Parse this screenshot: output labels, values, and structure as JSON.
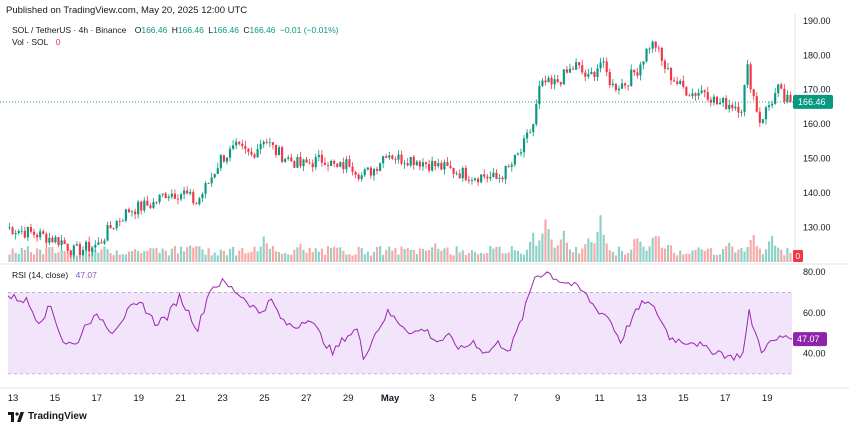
{
  "header": {
    "published": "Published on TradingView.com, May 20, 2025 12:00 UTC"
  },
  "legend": {
    "symbol": "SOL / TetherUS · 4h · Binance",
    "o_label": "O",
    "o_value": "166.46",
    "h_label": "H",
    "h_value": "166.46",
    "l_label": "L",
    "l_value": "166.46",
    "c_label": "C",
    "c_value": "166.46",
    "change": "−0.01 (−0.01%)",
    "vol_label": "Vol · SOL",
    "vol_value": "0"
  },
  "rsi_legend": {
    "label": "RSI (14, close)",
    "value": "47.07"
  },
  "brand": {
    "name": "TradingView"
  },
  "colors": {
    "up": "#089981",
    "down": "#f23645",
    "up_vol": "#8fd1c7",
    "down_vol": "#f7a9a7",
    "rsi": "#9c27b0",
    "rsi_band": "#f1e4fb",
    "price_tag": "#089981",
    "zero_tag": "#f23645"
  },
  "chart_data": [
    {
      "type": "candlestick",
      "title": "SOL / TetherUS · 4h · Binance",
      "ylim": [
        122,
        192
      ],
      "yticks": [
        "190.00",
        "180.00",
        "170.00",
        "160.00",
        "150.00",
        "140.00",
        "130.00"
      ],
      "last_price": 166.46,
      "last_price_label": "166.46",
      "keypoints": [
        [
          0,
          130
        ],
        [
          10,
          128
        ],
        [
          18,
          126
        ],
        [
          22,
          123
        ],
        [
          26,
          124
        ],
        [
          30,
          125
        ],
        [
          34,
          130
        ],
        [
          40,
          135
        ],
        [
          44,
          136
        ],
        [
          48,
          137
        ],
        [
          52,
          140
        ],
        [
          58,
          140
        ],
        [
          62,
          137
        ],
        [
          66,
          143
        ],
        [
          70,
          150
        ],
        [
          75,
          153
        ],
        [
          80,
          151
        ],
        [
          84,
          156
        ],
        [
          88,
          152
        ],
        [
          92,
          150
        ],
        [
          96,
          148
        ],
        [
          100,
          149
        ],
        [
          104,
          150
        ],
        [
          108,
          147
        ],
        [
          112,
          149
        ],
        [
          116,
          145
        ],
        [
          120,
          147
        ],
        [
          124,
          152
        ],
        [
          128,
          150
        ],
        [
          132,
          150
        ],
        [
          136,
          149
        ],
        [
          140,
          148
        ],
        [
          144,
          147
        ],
        [
          148,
          146
        ],
        [
          152,
          145
        ],
        [
          156,
          145
        ],
        [
          160,
          144
        ],
        [
          164,
          147
        ],
        [
          168,
          152
        ],
        [
          172,
          160
        ],
        [
          174,
          170
        ],
        [
          176,
          172
        ],
        [
          178,
          171
        ],
        [
          182,
          174
        ],
        [
          186,
          177
        ],
        [
          190,
          173
        ],
        [
          194,
          178
        ],
        [
          198,
          171
        ],
        [
          202,
          172
        ],
        [
          206,
          176
        ],
        [
          210,
          183
        ],
        [
          212,
          183
        ],
        [
          214,
          178
        ],
        [
          216,
          175
        ],
        [
          220,
          171
        ],
        [
          224,
          169
        ],
        [
          228,
          170
        ],
        [
          232,
          166
        ],
        [
          236,
          166
        ],
        [
          240,
          165
        ],
        [
          242,
          176
        ],
        [
          244,
          168
        ],
        [
          246,
          161
        ],
        [
          248,
          164
        ],
        [
          252,
          170
        ],
        [
          254,
          167
        ],
        [
          256,
          166.46
        ]
      ],
      "volume": {
        "value_label": "0",
        "peaks": [
          [
            60,
            0.42
          ],
          [
            84,
            0.5
          ],
          [
            96,
            0.38
          ],
          [
            140,
            0.42
          ],
          [
            172,
            0.55
          ],
          [
            176,
            0.85
          ],
          [
            182,
            0.62
          ],
          [
            190,
            0.5
          ],
          [
            194,
            0.92
          ],
          [
            206,
            0.6
          ],
          [
            212,
            0.65
          ],
          [
            216,
            0.45
          ],
          [
            236,
            0.42
          ],
          [
            244,
            0.56
          ],
          [
            250,
            0.52
          ]
        ]
      }
    },
    {
      "type": "line",
      "title": "RSI (14, close)",
      "ylim": [
        27,
        82
      ],
      "yticks": [
        "80.00",
        "60.00",
        "40.00"
      ],
      "band": [
        30,
        70
      ],
      "last_value": 47.07,
      "last_value_label": "47.07",
      "keypoints": [
        [
          0,
          68
        ],
        [
          6,
          66
        ],
        [
          10,
          56
        ],
        [
          14,
          63
        ],
        [
          18,
          46
        ],
        [
          22,
          44
        ],
        [
          26,
          56
        ],
        [
          30,
          58
        ],
        [
          34,
          51
        ],
        [
          40,
          62
        ],
        [
          44,
          64
        ],
        [
          48,
          55
        ],
        [
          52,
          58
        ],
        [
          56,
          68
        ],
        [
          62,
          52
        ],
        [
          66,
          72
        ],
        [
          70,
          75
        ],
        [
          74,
          71
        ],
        [
          78,
          66
        ],
        [
          82,
          60
        ],
        [
          86,
          66
        ],
        [
          90,
          55
        ],
        [
          94,
          53
        ],
        [
          98,
          58
        ],
        [
          102,
          49
        ],
        [
          106,
          40
        ],
        [
          110,
          48
        ],
        [
          114,
          52
        ],
        [
          116,
          38
        ],
        [
          120,
          50
        ],
        [
          124,
          60
        ],
        [
          128,
          55
        ],
        [
          132,
          50
        ],
        [
          136,
          52
        ],
        [
          140,
          46
        ],
        [
          144,
          48
        ],
        [
          148,
          42
        ],
        [
          152,
          46
        ],
        [
          156,
          40
        ],
        [
          160,
          45
        ],
        [
          164,
          42
        ],
        [
          168,
          58
        ],
        [
          172,
          78
        ],
        [
          176,
          80
        ],
        [
          180,
          76
        ],
        [
          184,
          74
        ],
        [
          188,
          70
        ],
        [
          192,
          62
        ],
        [
          196,
          58
        ],
        [
          200,
          46
        ],
        [
          204,
          58
        ],
        [
          208,
          66
        ],
        [
          212,
          60
        ],
        [
          216,
          48
        ],
        [
          220,
          46
        ],
        [
          224,
          46
        ],
        [
          228,
          42
        ],
        [
          232,
          41
        ],
        [
          236,
          38
        ],
        [
          240,
          40
        ],
        [
          242,
          60
        ],
        [
          244,
          50
        ],
        [
          246,
          42
        ],
        [
          250,
          46
        ],
        [
          254,
          49
        ],
        [
          256,
          47.07
        ]
      ]
    }
  ],
  "x_axis": {
    "labels": [
      "13",
      "15",
      "17",
      "19",
      "21",
      "23",
      "25",
      "27",
      "29",
      "May",
      "3",
      "5",
      "7",
      "9",
      "11",
      "13",
      "15",
      "17",
      "19"
    ]
  }
}
